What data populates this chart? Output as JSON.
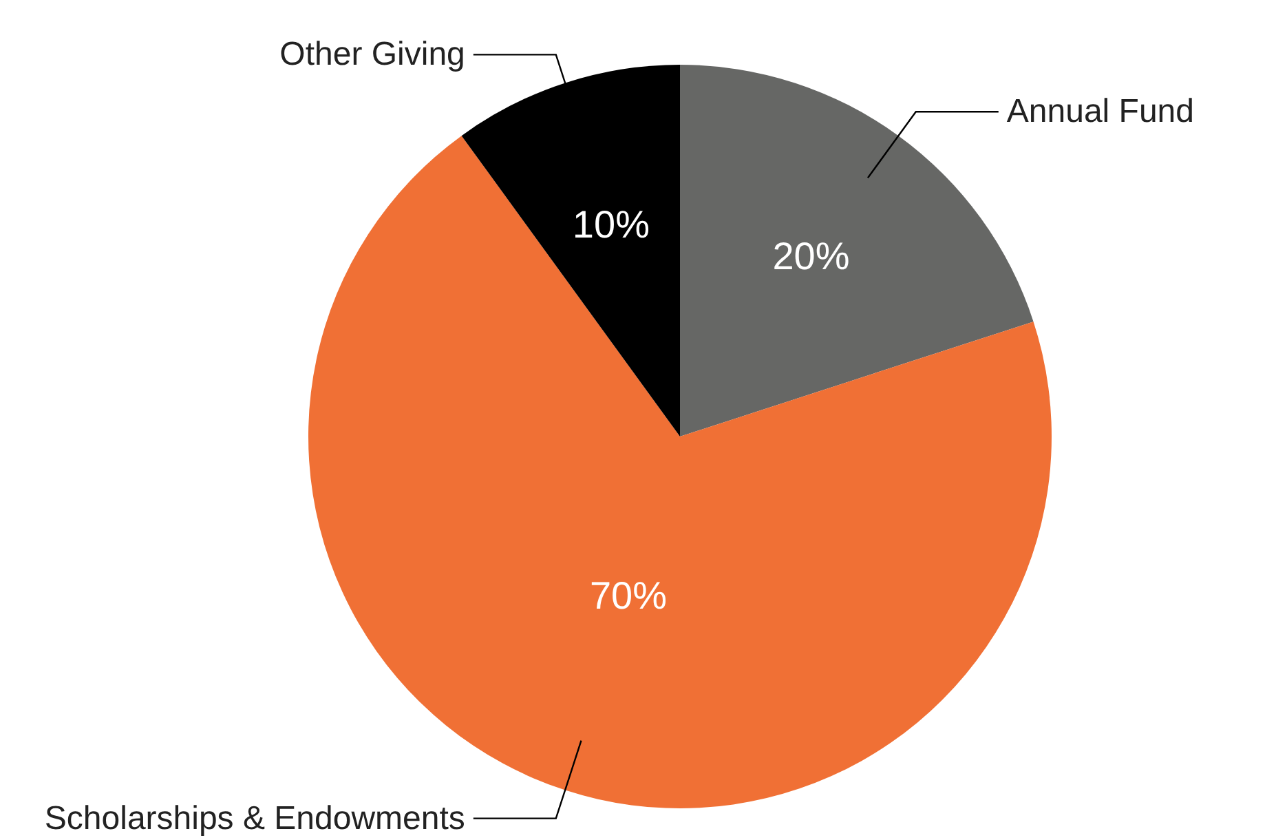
{
  "chart_data": {
    "type": "pie",
    "categories": [
      "Annual Fund",
      "Scholarships & Endowments",
      "Other Giving"
    ],
    "values": [
      20,
      70,
      10
    ],
    "colors": [
      "#666765",
      "#f07035",
      "#000000"
    ],
    "value_labels": [
      "20%",
      "70%",
      "10%"
    ]
  }
}
